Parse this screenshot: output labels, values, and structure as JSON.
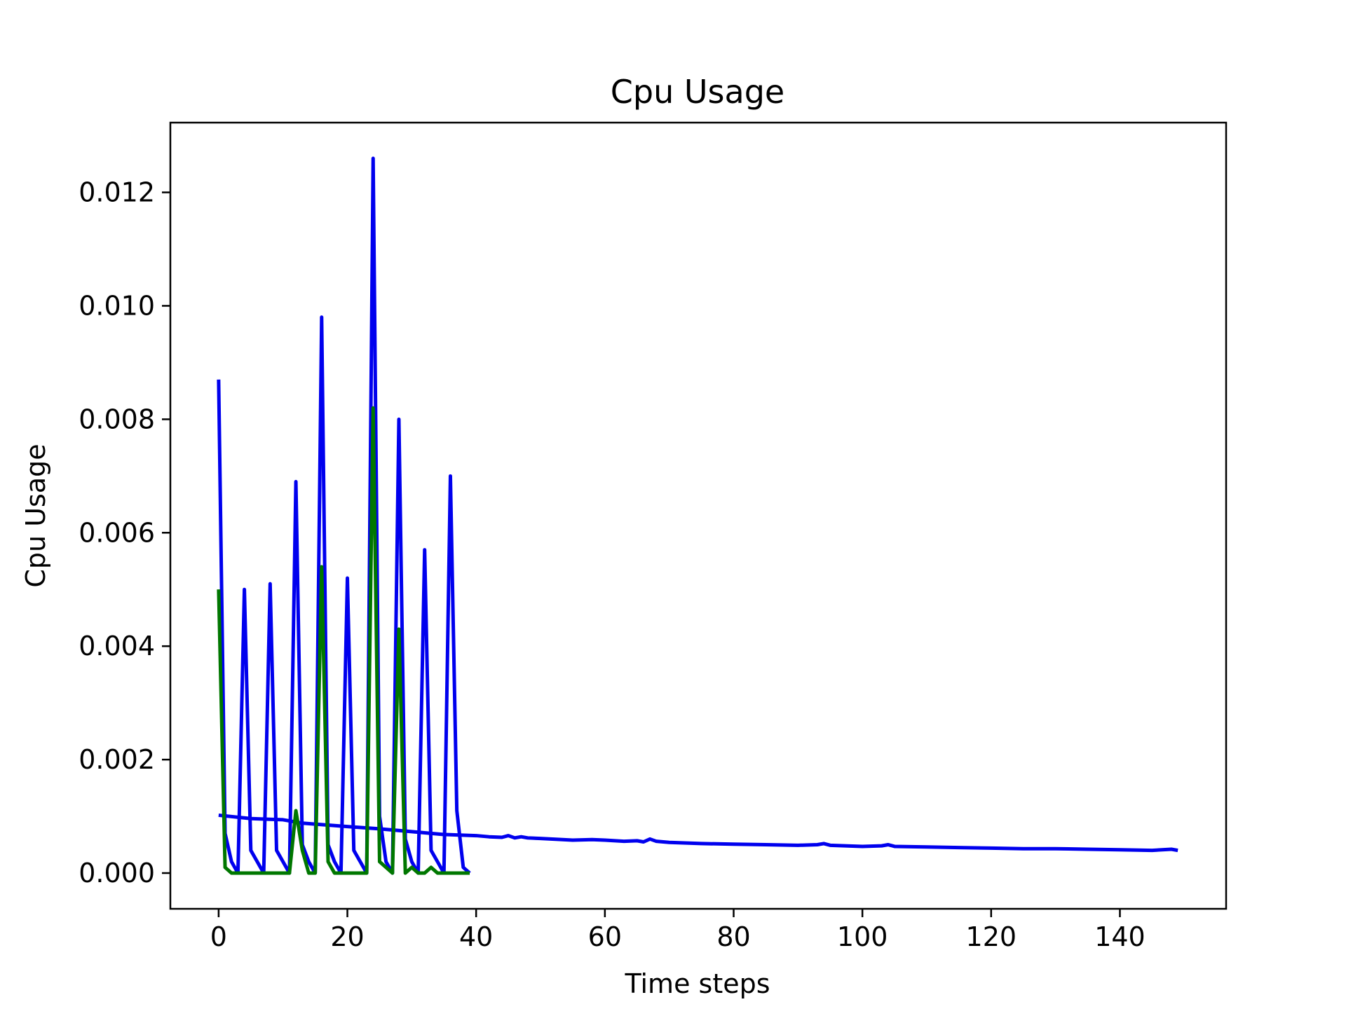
{
  "chart_data": {
    "type": "line",
    "title": "Cpu Usage",
    "xlabel": "Time steps",
    "ylabel": "Cpu Usage",
    "xlim": [
      -7.5,
      156.5
    ],
    "ylim": [
      -0.00063,
      0.01323
    ],
    "xticks": [
      0,
      20,
      40,
      60,
      80,
      100,
      120,
      140
    ],
    "yticks": [
      0.0,
      0.002,
      0.004,
      0.006,
      0.008,
      0.01,
      0.012
    ],
    "ytick_labels": [
      "0.000",
      "0.002",
      "0.004",
      "0.006",
      "0.008",
      "0.010",
      "0.012"
    ],
    "grid": false,
    "legend": "none",
    "series": [
      {
        "color": "#0000ee",
        "x": [
          0,
          1,
          2,
          3,
          4,
          5,
          6,
          7,
          8,
          9,
          10,
          11,
          12,
          13,
          14,
          15,
          16,
          17,
          18,
          19,
          20,
          21,
          22,
          23,
          24,
          25,
          26,
          27,
          28,
          29,
          30,
          31,
          32,
          33,
          34,
          35,
          36,
          37,
          38,
          39
        ],
        "y": [
          0.0087,
          0.0007,
          0.0002,
          0.0,
          0.005,
          0.0004,
          0.0002,
          0.0,
          0.0051,
          0.0004,
          0.0002,
          0.0,
          0.0069,
          0.0005,
          0.0002,
          0.0,
          0.0098,
          0.0005,
          0.0002,
          0.0,
          0.0052,
          0.0004,
          0.0002,
          0.0,
          0.0126,
          0.001,
          0.0002,
          0.0,
          0.008,
          0.0006,
          0.0002,
          0.0,
          0.0057,
          0.0004,
          0.0002,
          0.0,
          0.007,
          0.0011,
          0.0001,
          0.0
        ]
      },
      {
        "color": "#0000ee",
        "x": [
          0,
          5,
          10,
          13,
          20,
          25,
          30,
          35,
          40,
          42,
          44,
          45,
          46,
          47,
          48,
          50,
          55,
          58,
          60,
          63,
          65,
          66,
          67,
          68,
          70,
          75,
          80,
          85,
          90,
          93,
          94,
          95,
          100,
          103,
          104,
          105,
          110,
          115,
          120,
          125,
          130,
          135,
          140,
          145,
          148,
          149
        ],
        "y": [
          0.00102,
          0.00096,
          0.00094,
          0.00088,
          0.00082,
          0.00078,
          0.00073,
          0.00068,
          0.00066,
          0.00064,
          0.00063,
          0.00066,
          0.00062,
          0.00064,
          0.00062,
          0.00061,
          0.00058,
          0.00059,
          0.00058,
          0.00056,
          0.00057,
          0.00055,
          0.0006,
          0.00056,
          0.00054,
          0.00052,
          0.00051,
          0.0005,
          0.00049,
          0.0005,
          0.00052,
          0.00049,
          0.00047,
          0.00048,
          0.0005,
          0.00047,
          0.00046,
          0.00045,
          0.00044,
          0.00043,
          0.00043,
          0.00042,
          0.00041,
          0.0004,
          0.00042,
          0.0004
        ]
      },
      {
        "color": "#007700",
        "x": [
          0,
          1,
          2,
          3,
          4,
          5,
          6,
          7,
          8,
          9,
          10,
          11,
          12,
          13,
          14,
          15,
          16,
          17,
          18,
          19,
          20,
          21,
          22,
          23,
          24,
          25,
          26,
          27,
          28,
          29,
          30,
          31,
          32,
          33,
          34,
          35,
          36,
          37,
          38,
          39
        ],
        "y": [
          0.005,
          0.0001,
          0.0,
          0.0,
          0.0,
          0.0,
          0.0,
          0.0,
          0.0,
          0.0,
          0.0,
          0.0,
          0.0011,
          0.0004,
          0.0,
          0.0,
          0.0054,
          0.0002,
          0.0,
          0.0,
          0.0,
          0.0,
          0.0,
          0.0,
          0.0082,
          0.0002,
          0.0001,
          0.0,
          0.0043,
          0.0,
          0.0001,
          0.0,
          0.0,
          0.0001,
          0.0,
          0.0,
          0.0,
          0.0,
          0.0,
          0.0
        ]
      }
    ]
  }
}
